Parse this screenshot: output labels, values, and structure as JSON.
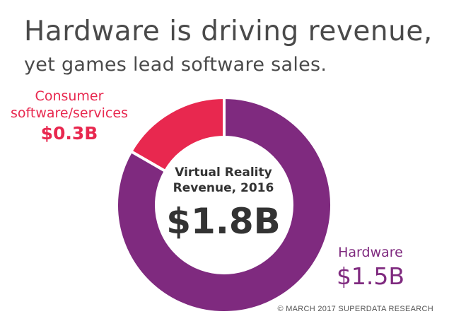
{
  "header": {
    "title": "Hardware is driving revenue,",
    "subtitle": "yet games lead software sales."
  },
  "center": {
    "line1": "Virtual Reality",
    "line2": "Revenue, 2016",
    "total": "$1.8B"
  },
  "labels": {
    "consumer": {
      "name_line1": "Consumer",
      "name_line2": "software/services",
      "value": "$0.3B"
    },
    "hardware": {
      "name": "Hardware",
      "value": "$1.5B"
    }
  },
  "source": "© MARCH 2017 SUPERDATA RESEARCH",
  "colors": {
    "hardware": "#7f2a7f",
    "consumer": "#e8284f",
    "text": "#4a4a4a"
  },
  "chart_data": {
    "type": "pie",
    "donut": true,
    "categories": [
      "Hardware",
      "Consumer software/services"
    ],
    "values": [
      1.5,
      0.3
    ],
    "unit": "$B"
  }
}
